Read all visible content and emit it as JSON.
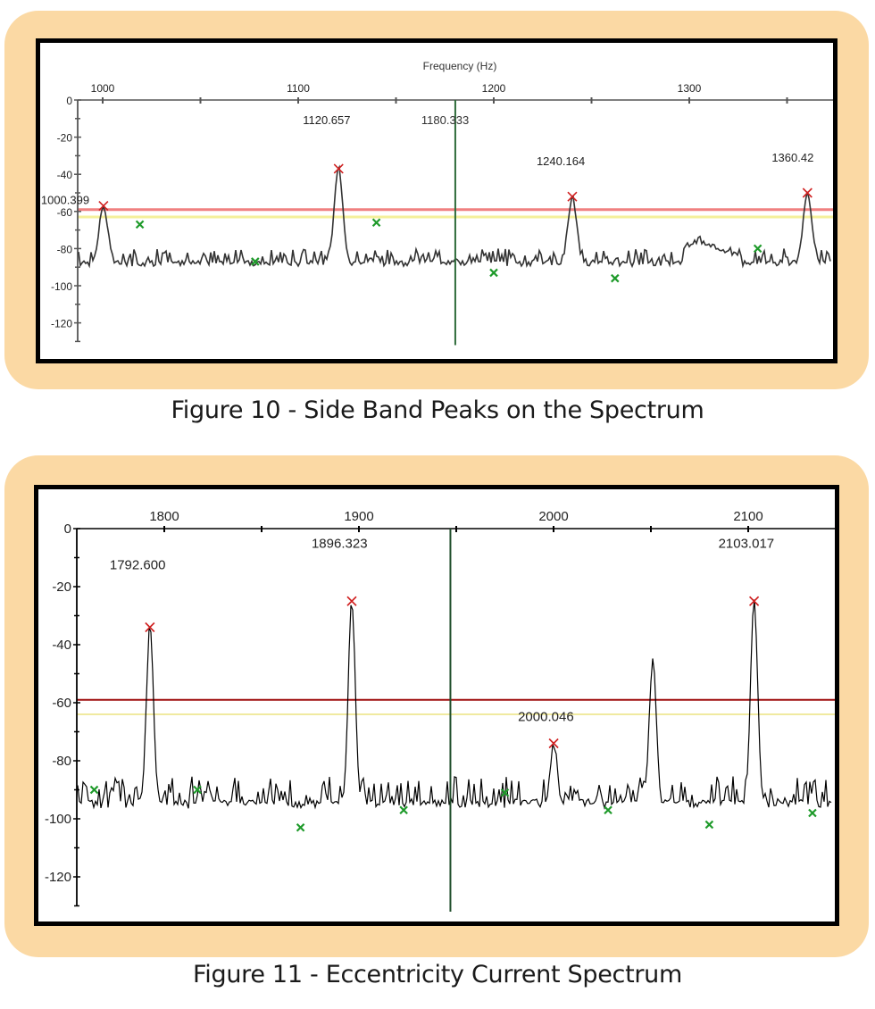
{
  "figures": [
    {
      "caption": "Figure 10 - Side Band Peaks on the Spectrum",
      "x_axis_title": "Frequency (Hz)"
    },
    {
      "caption": "Figure 11 - Eccentricity Current Spectrum"
    }
  ],
  "chart_data": [
    {
      "type": "line",
      "title": "Figure 10 - Side Band Peaks on the Spectrum",
      "xlabel": "Frequency (Hz)",
      "ylabel": "",
      "xlim": [
        987,
        1368
      ],
      "ylim": [
        -130,
        0
      ],
      "x_ticks": [
        1000,
        1100,
        1200,
        1300
      ],
      "y_ticks": [
        0,
        -20,
        -40,
        -60,
        -80,
        -100,
        -120
      ],
      "grid": false,
      "thresholds": [
        {
          "name": "red-threshold",
          "value": -59,
          "color": "#f08080"
        },
        {
          "name": "yellow-threshold",
          "value": -63,
          "color": "#f5f09a"
        }
      ],
      "cursor": {
        "x": 1180.333,
        "label": "1180.333",
        "color": "#2e6b3a"
      },
      "peaks": [
        {
          "x": 1000.399,
          "y": -57,
          "label": "1000.399",
          "marker": "red-x"
        },
        {
          "x": 1120.657,
          "y": -37,
          "label": "1120.657",
          "marker": "red-x"
        },
        {
          "x": 1240.164,
          "y": -52,
          "label": "1240.164",
          "marker": "red-x"
        },
        {
          "x": 1360.42,
          "y": -50,
          "label": "1360.42",
          "marker": "red-x"
        }
      ],
      "minor_markers": [
        {
          "x": 1019,
          "y": -67
        },
        {
          "x": 1078,
          "y": -87
        },
        {
          "x": 1140,
          "y": -66
        },
        {
          "x": 1200,
          "y": -93
        },
        {
          "x": 1262,
          "y": -96
        },
        {
          "x": 1335,
          "y": -80
        }
      ],
      "series": [
        {
          "name": "spectrum",
          "baseline": -88,
          "noise": 10
        }
      ]
    },
    {
      "type": "line",
      "title": "Figure 11 - Eccentricity Current Spectrum",
      "xlabel": "",
      "ylabel": "",
      "xlim": [
        1753,
        2141
      ],
      "ylim": [
        -130,
        0
      ],
      "x_ticks": [
        1800,
        1900,
        2000,
        2100
      ],
      "y_ticks": [
        0,
        -20,
        -40,
        -60,
        -80,
        -100,
        -120
      ],
      "grid": false,
      "thresholds": [
        {
          "name": "red-threshold",
          "value": -59,
          "color": "#a01010"
        },
        {
          "name": "yellow-threshold",
          "value": -64,
          "color": "#f0eaa0"
        }
      ],
      "cursor": {
        "x": 1947,
        "label": "",
        "color": "#1f4d2a"
      },
      "peaks": [
        {
          "x": 1792.6,
          "y": -34,
          "label": "1792.600",
          "marker": "red-x"
        },
        {
          "x": 1896.323,
          "y": -25,
          "label": "1896.323",
          "marker": "red-x"
        },
        {
          "x": 2000.046,
          "y": -74,
          "label": "2000.046",
          "marker": "red-x"
        },
        {
          "x": 2103.017,
          "y": -25,
          "label": "2103.017",
          "marker": "red-x"
        }
      ],
      "secondary_peaks": [
        {
          "x": 2051,
          "y": -45
        }
      ],
      "minor_markers": [
        {
          "x": 1764,
          "y": -90
        },
        {
          "x": 1817,
          "y": -90
        },
        {
          "x": 1870,
          "y": -103
        },
        {
          "x": 1923,
          "y": -97
        },
        {
          "x": 1975,
          "y": -91
        },
        {
          "x": 2028,
          "y": -97
        },
        {
          "x": 2080,
          "y": -102
        },
        {
          "x": 2133,
          "y": -98
        }
      ],
      "series": [
        {
          "name": "spectrum",
          "baseline": -95,
          "noise": 12
        }
      ]
    }
  ]
}
